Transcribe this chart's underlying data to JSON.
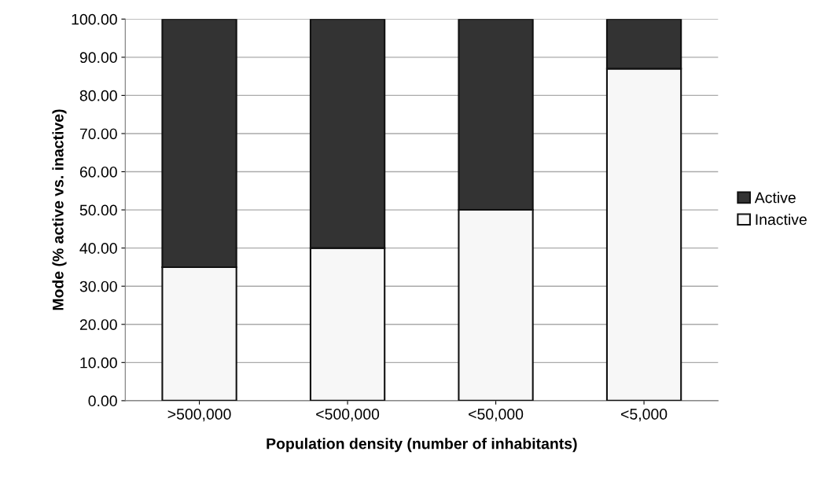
{
  "chart_data": {
    "type": "bar",
    "stacked": true,
    "xlabel": "Population density (number of inhabitants)",
    "ylabel": "Mode (% active vs. inactive)",
    "categories": [
      ">500,000",
      "<500,000",
      "<50,000",
      "<5,000"
    ],
    "series": [
      {
        "name": "Inactive",
        "color": "#f7f7f7",
        "values": [
          35,
          40,
          50,
          87
        ]
      },
      {
        "name": "Active",
        "color": "#333333",
        "values": [
          65,
          60,
          50,
          13
        ]
      }
    ],
    "ylim": [
      0,
      100
    ],
    "yticks": [
      {
        "value": 0,
        "label": "0.00"
      },
      {
        "value": 10,
        "label": "10.00"
      },
      {
        "value": 20,
        "label": "20.00"
      },
      {
        "value": 30,
        "label": "30.00"
      },
      {
        "value": 40,
        "label": "40.00"
      },
      {
        "value": 50,
        "label": "50.00"
      },
      {
        "value": 60,
        "label": "60.00"
      },
      {
        "value": 70,
        "label": "70.00"
      },
      {
        "value": 80,
        "label": "80.00"
      },
      {
        "value": 90,
        "label": "90.00"
      },
      {
        "value": 100,
        "label": "100.00"
      }
    ],
    "grid": "y",
    "legend": "right"
  }
}
